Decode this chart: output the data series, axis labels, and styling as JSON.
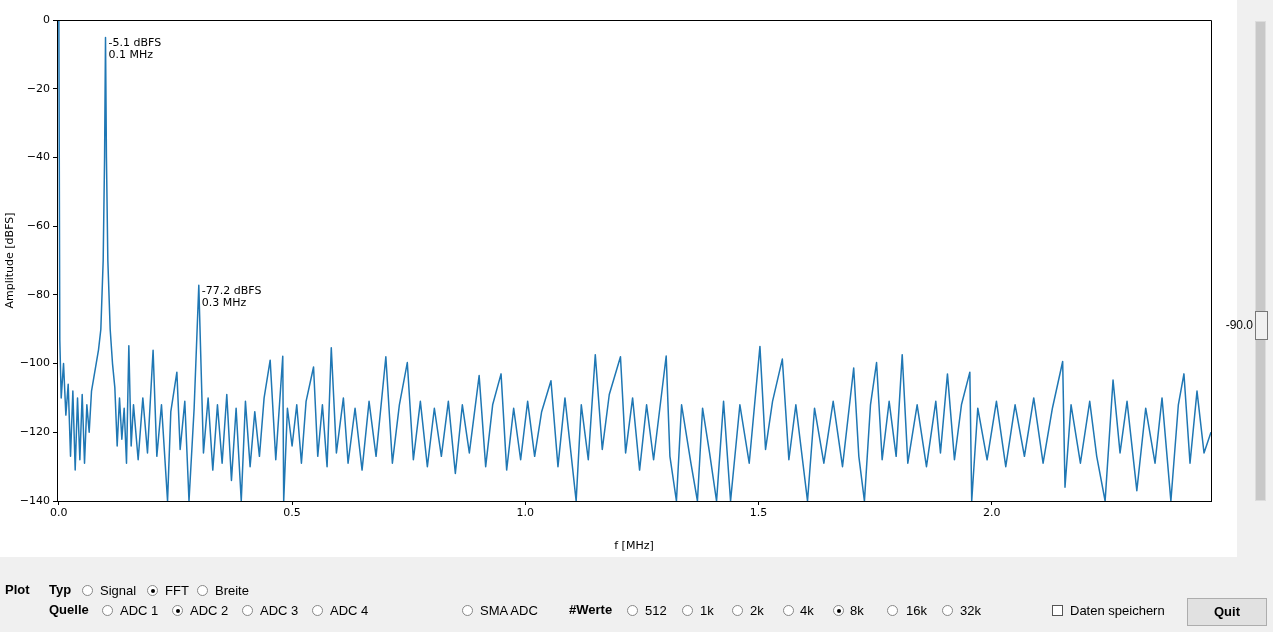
{
  "chart_data": {
    "type": "line",
    "xlabel": "f [MHz]",
    "ylabel": "Amplitude [dBFS]",
    "xlim": [
      -0.004,
      2.47
    ],
    "ylim": [
      -140,
      0
    ],
    "xticks": [
      {
        "value": 0,
        "label": "0.0"
      },
      {
        "value": 0.5,
        "label": "0.5"
      },
      {
        "value": 1,
        "label": "1.0"
      },
      {
        "value": 1.5,
        "label": "1.5"
      },
      {
        "value": 2,
        "label": "2.0"
      }
    ],
    "yticks": [
      {
        "value": -140,
        "label": "−140"
      },
      {
        "value": -120,
        "label": "−120"
      },
      {
        "value": -100,
        "label": "−100"
      },
      {
        "value": -80,
        "label": "−80"
      },
      {
        "value": -60,
        "label": "−60"
      },
      {
        "value": -40,
        "label": "−40"
      },
      {
        "value": -20,
        "label": "−20"
      },
      0
    ],
    "grid": false,
    "legend": false,
    "series": [
      {
        "color": "#1f77b4",
        "x": [
          0,
          0.002,
          0.005,
          0.01,
          0.015,
          0.02,
          0.025,
          0.03,
          0.035,
          0.04,
          0.045,
          0.05,
          0.055,
          0.06,
          0.065,
          0.07,
          0.075,
          0.08,
          0.085,
          0.09,
          0.095,
          0.098,
          0.1,
          0.102,
          0.105,
          0.11,
          0.115,
          0.12,
          0.125,
          0.13,
          0.135,
          0.14,
          0.145,
          0.15,
          0.155,
          0.16,
          0.17,
          0.18,
          0.19,
          0.202,
          0.21,
          0.22,
          0.233,
          0.24,
          0.253,
          0.26,
          0.27,
          0.279,
          0.29,
          0.3,
          0.31,
          0.32,
          0.33,
          0.34,
          0.35,
          0.36,
          0.37,
          0.38,
          0.391,
          0.4,
          0.41,
          0.42,
          0.43,
          0.44,
          0.453,
          0.465,
          0.48,
          0.482,
          0.49,
          0.5,
          0.51,
          0.52,
          0.53,
          0.546,
          0.555,
          0.565,
          0.575,
          0.584,
          0.595,
          0.61,
          0.62,
          0.635,
          0.65,
          0.665,
          0.68,
          0.701,
          0.715,
          0.73,
          0.747,
          0.76,
          0.775,
          0.79,
          0.805,
          0.82,
          0.835,
          0.85,
          0.865,
          0.88,
          0.901,
          0.915,
          0.93,
          0.948,
          0.96,
          0.975,
          0.99,
          1.005,
          1.02,
          1.035,
          1.055,
          1.07,
          1.085,
          1.109,
          1.12,
          1.135,
          1.15,
          1.165,
          1.18,
          1.204,
          1.215,
          1.23,
          1.245,
          1.26,
          1.275,
          1.302,
          1.31,
          1.324,
          1.335,
          1.355,
          1.369,
          1.38,
          1.395,
          1.41,
          1.425,
          1.44,
          1.46,
          1.48,
          1.503,
          1.515,
          1.53,
          1.551,
          1.565,
          1.58,
          1.605,
          1.62,
          1.64,
          1.66,
          1.68,
          1.704,
          1.715,
          1.727,
          1.74,
          1.753,
          1.765,
          1.78,
          1.795,
          1.808,
          1.82,
          1.84,
          1.86,
          1.88,
          1.89,
          1.905,
          1.92,
          1.935,
          1.953,
          1.957,
          1.97,
          1.99,
          2.01,
          2.03,
          2.05,
          2.07,
          2.09,
          2.11,
          2.13,
          2.152,
          2.157,
          2.17,
          2.19,
          2.21,
          2.225,
          2.243,
          2.26,
          2.275,
          2.29,
          2.311,
          2.33,
          2.35,
          2.365,
          2.384,
          2.4,
          2.412,
          2.425,
          2.44,
          2.455,
          2.47
        ],
        "values": [
          0,
          -93,
          -110,
          -100,
          -115,
          -106,
          -127,
          -108,
          -131,
          -110,
          -128,
          -109,
          -129,
          -112,
          -120,
          -108,
          -104,
          -100,
          -96,
          -90,
          -70,
          -40,
          -5.1,
          -40,
          -70,
          -90,
          -100,
          -107,
          -124,
          -110,
          -122,
          -113,
          -129,
          -94.8,
          -124,
          -112,
          -128,
          -110,
          -126,
          -96.1,
          -127,
          -112,
          -140,
          -114,
          -102.5,
          -125,
          -111,
          -140,
          -113,
          -77.2,
          -126,
          -110,
          -131,
          -112,
          -129,
          -109,
          -134,
          -113,
          -140,
          -111,
          -130,
          -114,
          -127,
          -110,
          -99,
          -128,
          -97.9,
          -140,
          -113,
          -124,
          -112,
          -129,
          -111,
          -101,
          -127,
          -112,
          -130,
          -95.4,
          -126,
          -110,
          -129,
          -113,
          -131,
          -111,
          -127,
          -98,
          -129,
          -112,
          -99.7,
          -128,
          -111,
          -130,
          -113,
          -127,
          -111,
          -132,
          -112,
          -126,
          -103.5,
          -130,
          -112,
          -103,
          -131,
          -113,
          -128,
          -111,
          -127,
          -114,
          -105,
          -130,
          -110,
          -140,
          -112,
          -128,
          -97.4,
          -125,
          -109,
          -98,
          -126,
          -110,
          -131,
          -112,
          -128,
          -97.8,
          -127,
          -140,
          -112,
          -129,
          -140,
          -113,
          -126,
          -140,
          -111,
          -140,
          -112,
          -129,
          -95,
          -125,
          -111,
          -98.7,
          -128,
          -112,
          -140,
          -113,
          -129,
          -111,
          -130,
          -101.3,
          -127,
          -140,
          -112,
          -99.7,
          -128,
          -111,
          -127,
          -97.4,
          -129,
          -112,
          -130,
          -111,
          -126,
          -103,
          -128,
          -112,
          -102.5,
          -140,
          -113,
          -128,
          -111,
          -130,
          -112,
          -127,
          -110,
          -129,
          -113,
          -99.4,
          -136,
          -112,
          -129,
          -111,
          -127,
          -140,
          -104.8,
          -126,
          -111,
          -137,
          -113,
          -129,
          -110,
          -140,
          -112,
          -103,
          -129,
          -108,
          -126,
          -120
        ]
      }
    ],
    "annotations": [
      {
        "text": "-5.1 dBFS\n0.1 MHz",
        "x": 0.1,
        "y": -5.1
      },
      {
        "text": "-77.2 dBFS\n0.3 MHz",
        "x": 0.3,
        "y": -77.2
      },
      "Plot",
      "Typ",
      "Signal",
      "FFT",
      "Breite",
      "Quelle",
      "ADC 1",
      "ADC 2",
      "ADC 3",
      "ADC 4",
      "SMA ADC",
      "#Werte",
      "512",
      "1k",
      "2k",
      "4k",
      "8k",
      "16k",
      "32k",
      "Daten speichern",
      "Quit",
      "-90.0"
    ]
  }
}
